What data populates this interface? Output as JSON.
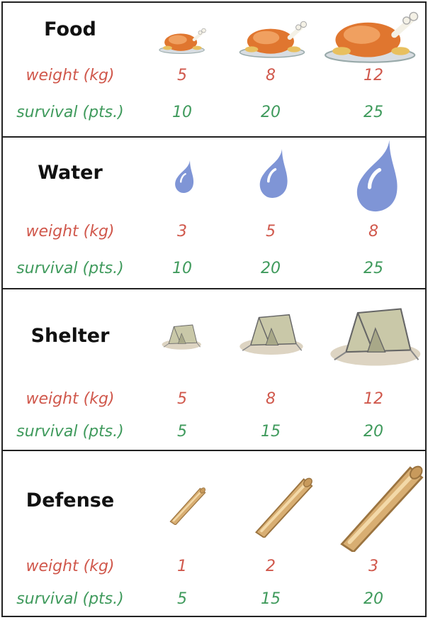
{
  "categories": [
    {
      "title": "Food",
      "icon": "roast-chicken-icon",
      "weight_label": "weight (kg)",
      "survival_label": "survival (pts.)",
      "weights": [
        "5",
        "8",
        "12"
      ],
      "survival": [
        "10",
        "20",
        "25"
      ]
    },
    {
      "title": "Water",
      "icon": "water-drop-icon",
      "weight_label": "weight (kg)",
      "survival_label": "survival (pts.)",
      "weights": [
        "3",
        "5",
        "8"
      ],
      "survival": [
        "10",
        "20",
        "25"
      ]
    },
    {
      "title": "Shelter",
      "icon": "tent-icon",
      "weight_label": "weight (kg)",
      "survival_label": "survival (pts.)",
      "weights": [
        "5",
        "8",
        "12"
      ],
      "survival": [
        "5",
        "15",
        "20"
      ]
    },
    {
      "title": "Defense",
      "icon": "wooden-log-icon",
      "weight_label": "weight (kg)",
      "survival_label": "survival (pts.)",
      "weights": [
        "1",
        "2",
        "3"
      ],
      "survival": [
        "5",
        "15",
        "20"
      ]
    }
  ],
  "colors": {
    "weight": "#d0584c",
    "survival": "#3f9a5c",
    "water": "#7f95d6",
    "chicken": "#e0762f",
    "tent": "#c9c8a8",
    "log": "#d8ae72"
  }
}
